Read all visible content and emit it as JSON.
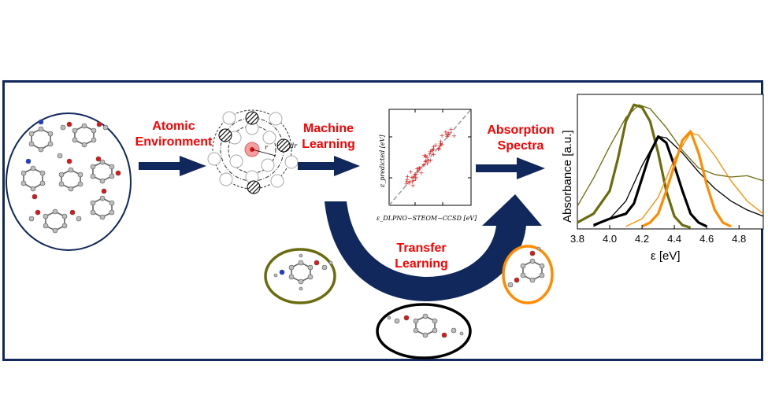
{
  "labels": {
    "atomic_environment": "Atomic\nEnvironment",
    "machine_learning": "Machine\nLearning",
    "absorption_spectra": "Absorption\nSpectra",
    "transfer_learning": "Transfer\nLearning"
  },
  "parity_plot": {
    "ylabel": "ε_predicted [eV]",
    "xlabel": "ε_DLPNO−STEOM−CCSD [eV]"
  },
  "chart_data": {
    "type": "line",
    "xlabel": "ε [eV]",
    "ylabel": "Absorbance [a.u.]",
    "xlim": [
      3.8,
      4.95
    ],
    "x_ticks": [
      "3.8",
      "4.0",
      "4.2",
      "4.4",
      "4.6",
      "4.8"
    ],
    "series": [
      {
        "color": "#6b6b10",
        "style": "thick",
        "points": [
          [
            3.8,
            0.05
          ],
          [
            3.9,
            0.12
          ],
          [
            4.0,
            0.3
          ],
          [
            4.05,
            0.55
          ],
          [
            4.1,
            0.85
          ],
          [
            4.15,
            0.98
          ],
          [
            4.2,
            0.96
          ],
          [
            4.25,
            0.85
          ],
          [
            4.3,
            0.6
          ],
          [
            4.35,
            0.3
          ],
          [
            4.4,
            0.1
          ],
          [
            4.45,
            0.03
          ],
          [
            4.5,
            0.01
          ]
        ]
      },
      {
        "color": "#6b6b10",
        "style": "thin",
        "points": [
          [
            3.8,
            0.18
          ],
          [
            3.9,
            0.4
          ],
          [
            4.0,
            0.65
          ],
          [
            4.1,
            0.88
          ],
          [
            4.18,
            0.98
          ],
          [
            4.25,
            0.95
          ],
          [
            4.35,
            0.8
          ],
          [
            4.45,
            0.62
          ],
          [
            4.55,
            0.48
          ],
          [
            4.65,
            0.43
          ],
          [
            4.75,
            0.41
          ],
          [
            4.85,
            0.42
          ],
          [
            4.95,
            0.38
          ]
        ]
      },
      {
        "color": "#000000",
        "style": "thick",
        "points": [
          [
            3.9,
            0.03
          ],
          [
            4.0,
            0.08
          ],
          [
            4.1,
            0.12
          ],
          [
            4.15,
            0.2
          ],
          [
            4.2,
            0.4
          ],
          [
            4.25,
            0.6
          ],
          [
            4.3,
            0.73
          ],
          [
            4.35,
            0.68
          ],
          [
            4.4,
            0.5
          ],
          [
            4.45,
            0.3
          ],
          [
            4.5,
            0.12
          ],
          [
            4.55,
            0.05
          ],
          [
            4.6,
            0.02
          ]
        ]
      },
      {
        "color": "#000000",
        "style": "thin",
        "points": [
          [
            3.9,
            0.02
          ],
          [
            4.0,
            0.08
          ],
          [
            4.1,
            0.22
          ],
          [
            4.2,
            0.5
          ],
          [
            4.3,
            0.73
          ],
          [
            4.35,
            0.72
          ],
          [
            4.45,
            0.6
          ],
          [
            4.55,
            0.45
          ],
          [
            4.65,
            0.32
          ],
          [
            4.75,
            0.22
          ],
          [
            4.85,
            0.15
          ],
          [
            4.95,
            0.1
          ]
        ]
      },
      {
        "color": "#ff8c00",
        "style": "thick",
        "points": [
          [
            4.2,
            0.02
          ],
          [
            4.25,
            0.05
          ],
          [
            4.3,
            0.12
          ],
          [
            4.35,
            0.3
          ],
          [
            4.4,
            0.5
          ],
          [
            4.45,
            0.7
          ],
          [
            4.5,
            0.77
          ],
          [
            4.55,
            0.6
          ],
          [
            4.6,
            0.35
          ],
          [
            4.65,
            0.15
          ],
          [
            4.7,
            0.05
          ],
          [
            4.75,
            0.02
          ]
        ]
      },
      {
        "color": "#ff8c00",
        "style": "thin",
        "points": [
          [
            4.1,
            0.02
          ],
          [
            4.2,
            0.08
          ],
          [
            4.3,
            0.25
          ],
          [
            4.4,
            0.55
          ],
          [
            4.5,
            0.76
          ],
          [
            4.55,
            0.74
          ],
          [
            4.65,
            0.58
          ],
          [
            4.75,
            0.38
          ],
          [
            4.85,
            0.22
          ],
          [
            4.95,
            0.12
          ]
        ]
      }
    ]
  }
}
